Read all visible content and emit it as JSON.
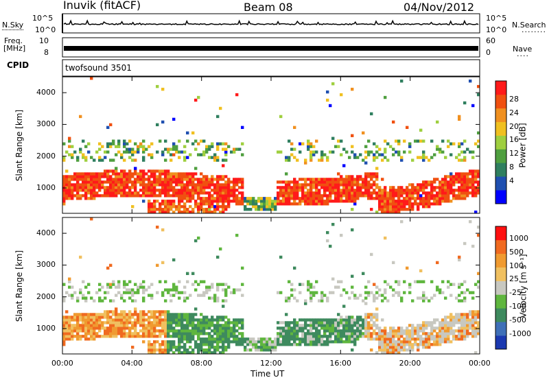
{
  "header": {
    "station": "Inuvik (fitACF)",
    "beam": "Beam 08",
    "date": "04/Nov/2012"
  },
  "top_panels": {
    "nsky_label": "N.Sky",
    "nsky_ticks": [
      "10^5",
      "10^0"
    ],
    "nsearch_label": "N.Search",
    "nsearch_ticks": [
      "10^5",
      "10^0"
    ],
    "freq_label": "Freq.",
    "freq_unit": "[MHz]",
    "freq_ticks": [
      "10",
      "8"
    ],
    "nave_label": "Nave",
    "nave_ticks": [
      "60",
      "0"
    ],
    "cpid_label": "CPID",
    "cpid_value": "twofsound 3501"
  },
  "chart_data": [
    {
      "type": "heatmap",
      "name": "power",
      "ylabel": "Slant Range [km]",
      "ylim": [
        200,
        4500
      ],
      "yticks": [
        "1000",
        "2000",
        "3000",
        "4000"
      ],
      "colorbar_label": "Power [dB]",
      "colorbar_ticks": [
        "28",
        "24",
        "20",
        "16",
        "12",
        "8",
        "4"
      ],
      "colors": [
        "#0000ff",
        "#1f4fb0",
        "#2f7f5f",
        "#4f9f3f",
        "#9fcf3f",
        "#f0c020",
        "#f09020",
        "#f05010",
        "#ff1a1a"
      ]
    },
    {
      "type": "heatmap",
      "name": "velocity",
      "ylabel": "Slant Range [km]",
      "ylim": [
        200,
        4500
      ],
      "yticks": [
        "1000",
        "2000",
        "3000",
        "4000"
      ],
      "colorbar_label": "Velocity [m s⁻¹]",
      "colorbar_ticks": [
        "1000",
        "500",
        "100",
        "25",
        "-25",
        "-100",
        "-500",
        "-1000"
      ],
      "colors": [
        "#1b39b0",
        "#3f70b8",
        "#3e8a5e",
        "#5fb63e",
        "#c8c8c0",
        "#f0c060",
        "#f09a30",
        "#f06a20",
        "#ff1010"
      ],
      "xlabel": "Time UT",
      "xticks": [
        "00:00",
        "04:00",
        "08:00",
        "12:00",
        "16:00",
        "20:00",
        "00:00"
      ]
    }
  ]
}
